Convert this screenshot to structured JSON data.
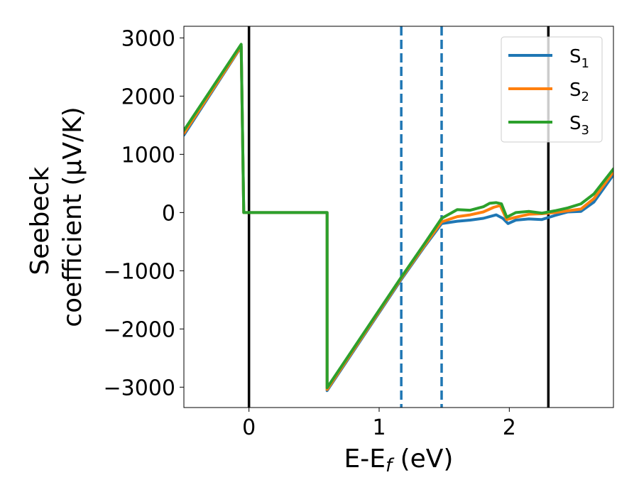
{
  "chart_data": {
    "type": "line",
    "title": "",
    "xlabel": "E-E",
    "xlabel_sub": "f",
    "xlabel_unit": " (eV)",
    "ylabel_line1": "Seebeck",
    "ylabel_line2": "coefficient  (μV/K)",
    "xlim": [
      -0.5,
      2.8
    ],
    "ylim": [
      -3350,
      3200
    ],
    "x_ticks": [
      0,
      1,
      2
    ],
    "x_tick_labels": [
      "0",
      "1",
      "2"
    ],
    "y_ticks": [
      -3000,
      -2000,
      -1000,
      0,
      1000,
      2000,
      3000
    ],
    "y_tick_labels": [
      "−3000",
      "−2000",
      "−1000",
      "0",
      "1000",
      "2000",
      "3000"
    ],
    "grid": false,
    "legend_position": "top-right",
    "vertical_lines": [
      {
        "x": 0.0,
        "style": "solid",
        "color": "#000000"
      },
      {
        "x": 2.3,
        "style": "solid",
        "color": "#000000"
      },
      {
        "x": 1.17,
        "style": "dashed",
        "color": "#1f77b4"
      },
      {
        "x": 1.48,
        "style": "dashed",
        "color": "#1f77b4"
      }
    ],
    "series": [
      {
        "name": "S",
        "sub": "1",
        "color": "#1f77b4",
        "x": [
          -0.5,
          -0.06,
          -0.04,
          0.0,
          0.6,
          0.6,
          1.17,
          1.35,
          1.48,
          1.6,
          1.7,
          1.8,
          1.9,
          1.95,
          1.99,
          2.05,
          2.15,
          2.25,
          2.35,
          2.45,
          2.55,
          2.65,
          2.8
        ],
        "y": [
          1330,
          2850,
          0,
          0,
          0,
          -3060,
          -1150,
          -580,
          -190,
          -150,
          -130,
          -100,
          -40,
          -100,
          -190,
          -130,
          -110,
          -120,
          -50,
          10,
          20,
          180,
          650
        ]
      },
      {
        "name": "S",
        "sub": "2",
        "color": "#ff7f0e",
        "x": [
          -0.5,
          -0.06,
          -0.04,
          0.0,
          0.6,
          0.6,
          1.17,
          1.35,
          1.48,
          1.6,
          1.7,
          1.8,
          1.88,
          1.93,
          1.98,
          2.05,
          2.15,
          2.25,
          2.35,
          2.45,
          2.55,
          2.65,
          2.8
        ],
        "y": [
          1360,
          2860,
          0,
          0,
          0,
          -3040,
          -1130,
          -560,
          -160,
          -70,
          -40,
          10,
          90,
          120,
          -120,
          -80,
          -30,
          -20,
          0,
          30,
          60,
          240,
          700
        ]
      },
      {
        "name": "S",
        "sub": "3",
        "color": "#2ca02c",
        "x": [
          -0.5,
          -0.06,
          -0.04,
          0.0,
          0.6,
          0.6,
          1.17,
          1.35,
          1.48,
          1.6,
          1.7,
          1.8,
          1.85,
          1.9,
          1.94,
          1.98,
          2.05,
          2.15,
          2.25,
          2.35,
          2.45,
          2.55,
          2.65,
          2.8
        ],
        "y": [
          1410,
          2890,
          0,
          0,
          0,
          -3010,
          -1110,
          -530,
          -100,
          50,
          40,
          100,
          160,
          170,
          150,
          -80,
          0,
          20,
          -10,
          30,
          80,
          150,
          320,
          750
        ]
      }
    ]
  }
}
